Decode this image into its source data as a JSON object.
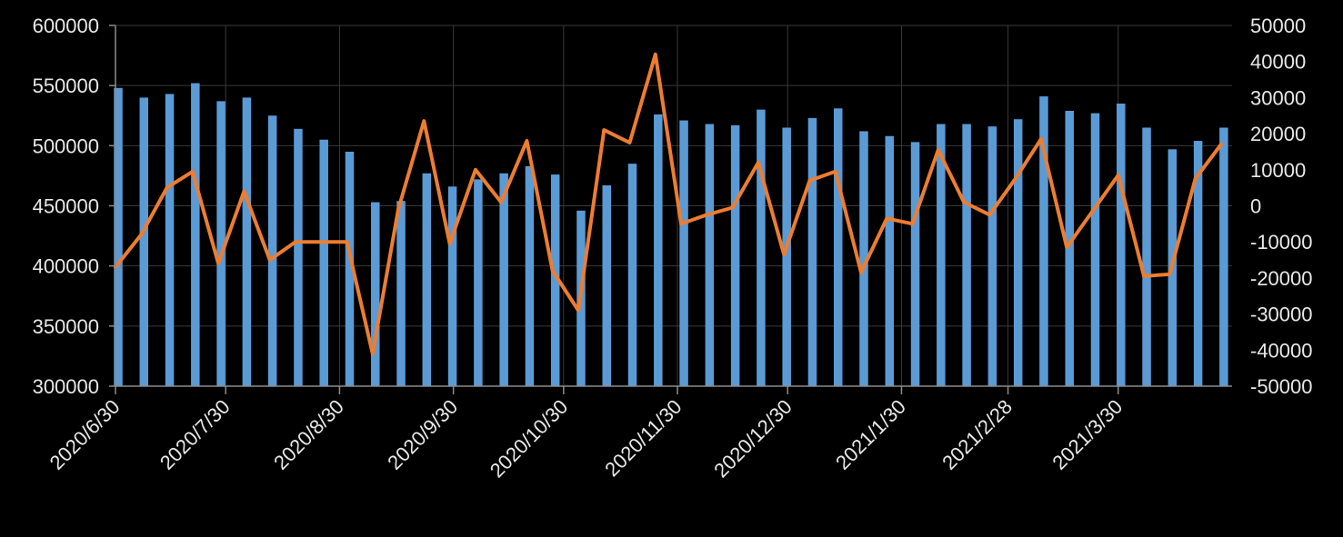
{
  "chart_data": {
    "type": "bar+line",
    "title": "",
    "xlabel": "",
    "ylabel": "",
    "colors": {
      "bar": "#5b9bd5",
      "line": "#ed7d31",
      "background": "#000000",
      "text": "#e8e8e8",
      "grid": "#3a3a3a"
    },
    "grid": true,
    "legend": "none",
    "x_tick_labels": [
      "2020/6/30",
      "2020/7/30",
      "2020/8/30",
      "2020/9/30",
      "2020/10/30",
      "2020/11/30",
      "2020/12/30",
      "2021/1/30",
      "2021/2/28",
      "2021/3/30"
    ],
    "x_tick_dates": [
      "2020-06-30",
      "2020-07-30",
      "2020-08-30",
      "2020-09-30",
      "2020-10-30",
      "2020-11-30",
      "2020-12-30",
      "2021-01-30",
      "2021-02-28",
      "2021-03-30"
    ],
    "x_range": [
      "2020-06-30",
      "2021-04-30"
    ],
    "x": [
      "2020-06-30",
      "2020-07-07",
      "2020-07-14",
      "2020-07-21",
      "2020-07-28",
      "2020-08-04",
      "2020-08-11",
      "2020-08-18",
      "2020-08-25",
      "2020-09-01",
      "2020-09-08",
      "2020-09-15",
      "2020-09-22",
      "2020-09-29",
      "2020-10-06",
      "2020-10-13",
      "2020-10-20",
      "2020-10-27",
      "2020-11-03",
      "2020-11-10",
      "2020-11-17",
      "2020-11-24",
      "2020-12-01",
      "2020-12-08",
      "2020-12-15",
      "2020-12-22",
      "2020-12-29",
      "2021-01-05",
      "2021-01-12",
      "2021-01-19",
      "2021-01-26",
      "2021-02-02",
      "2021-02-09",
      "2021-02-16",
      "2021-02-23",
      "2021-03-02",
      "2021-03-09",
      "2021-03-16",
      "2021-03-23",
      "2021-03-30",
      "2021-04-06",
      "2021-04-13",
      "2021-04-20",
      "2021-04-27"
    ],
    "bar_series": {
      "axis": "left",
      "ylim": [
        300000,
        600000
      ],
      "ticks": [
        300000,
        350000,
        400000,
        450000,
        500000,
        550000,
        600000
      ],
      "values": [
        548000,
        540000,
        543000,
        552000,
        537000,
        540000,
        525000,
        514000,
        505000,
        495000,
        453000,
        454000,
        477000,
        466000,
        472000,
        477000,
        483000,
        476000,
        446000,
        467000,
        485000,
        526000,
        521000,
        518000,
        517000,
        530000,
        515000,
        523000,
        531000,
        512000,
        508000,
        503000,
        518000,
        518000,
        516000,
        522000,
        541000,
        529000,
        527000,
        535000,
        515000,
        497000,
        504000,
        515000
      ]
    },
    "line_series": {
      "axis": "right",
      "ylim": [
        -50000,
        50000
      ],
      "ticks": [
        -50000,
        -40000,
        -30000,
        -20000,
        -10000,
        0,
        10000,
        20000,
        30000,
        40000,
        50000
      ],
      "values": [
        -17000,
        -8000,
        5000,
        9500,
        -16000,
        4000,
        -15000,
        -10000,
        -10000,
        -10000,
        -41000,
        -1000,
        23500,
        -10500,
        10000,
        1000,
        18000,
        -18000,
        -29000,
        21000,
        17500,
        42000,
        -5000,
        -2500,
        -500,
        12000,
        -13500,
        7000,
        9500,
        -18500,
        -3500,
        -5000,
        15500,
        1000,
        -2500,
        7500,
        18500,
        -11500,
        -1500,
        8500,
        -19500,
        -19000,
        7500,
        17000
      ]
    }
  }
}
